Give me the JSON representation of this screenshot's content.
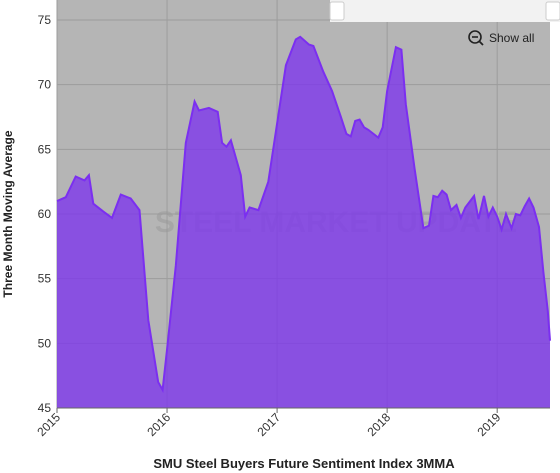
{
  "chart_data": {
    "type": "area",
    "title": "SMU Steel Buyers Future Sentiment Index 3MMA",
    "y_label": "Three Month Moving Average",
    "watermark": "STEEL MARKET UPDATE",
    "button": "Show all",
    "x": [
      2015.0,
      2015.08,
      2015.17,
      2015.25,
      2015.29,
      2015.33,
      2015.42,
      2015.5,
      2015.58,
      2015.67,
      2015.75,
      2015.83,
      2015.92,
      2015.96,
      2016.0,
      2016.08,
      2016.17,
      2016.25,
      2016.29,
      2016.38,
      2016.46,
      2016.5,
      2016.54,
      2016.58,
      2016.67,
      2016.71,
      2016.75,
      2016.83,
      2016.92,
      2017.0,
      2017.08,
      2017.17,
      2017.21,
      2017.29,
      2017.33,
      2017.42,
      2017.5,
      2017.58,
      2017.63,
      2017.67,
      2017.71,
      2017.75,
      2017.79,
      2017.83,
      2017.92,
      2017.96,
      2018.0,
      2018.08,
      2018.13,
      2018.17,
      2018.25,
      2018.33,
      2018.38,
      2018.42,
      2018.46,
      2018.5,
      2018.54,
      2018.58,
      2018.63,
      2018.67,
      2018.71,
      2018.79,
      2018.83,
      2018.88,
      2018.92,
      2018.96,
      2019.0,
      2019.04,
      2019.08,
      2019.13,
      2019.17,
      2019.21,
      2019.25,
      2019.29,
      2019.33,
      2019.38,
      2019.42,
      2019.46,
      2019.48
    ],
    "values": [
      61.0,
      61.3,
      62.9,
      62.6,
      63.0,
      60.8,
      60.2,
      59.7,
      61.5,
      61.2,
      60.3,
      51.8,
      47.0,
      46.4,
      49.5,
      56.0,
      65.5,
      68.7,
      68.0,
      68.2,
      67.9,
      65.5,
      65.2,
      65.7,
      63.0,
      59.8,
      60.5,
      60.3,
      62.5,
      67.0,
      71.5,
      73.5,
      73.7,
      73.1,
      73.0,
      71.0,
      69.5,
      67.5,
      66.2,
      66.0,
      67.2,
      67.3,
      66.7,
      66.5,
      65.9,
      66.7,
      69.5,
      72.9,
      72.7,
      68.5,
      63.5,
      58.9,
      59.1,
      61.4,
      61.3,
      61.8,
      61.5,
      60.3,
      60.7,
      59.7,
      60.5,
      61.4,
      59.6,
      61.4,
      59.8,
      60.5,
      59.8,
      58.8,
      60.0,
      58.9,
      60.0,
      59.9,
      60.6,
      61.2,
      60.5,
      59.0,
      55.5,
      52.5,
      50.2
    ],
    "color": "#7b2ff0",
    "xlim": [
      2015,
      2019.48
    ],
    "xticks": [
      2015,
      2016,
      2017,
      2018,
      2019
    ],
    "ylim": [
      45,
      75
    ],
    "yticks": [
      45,
      50,
      55,
      60,
      65,
      70,
      75
    ],
    "grid": true
  }
}
